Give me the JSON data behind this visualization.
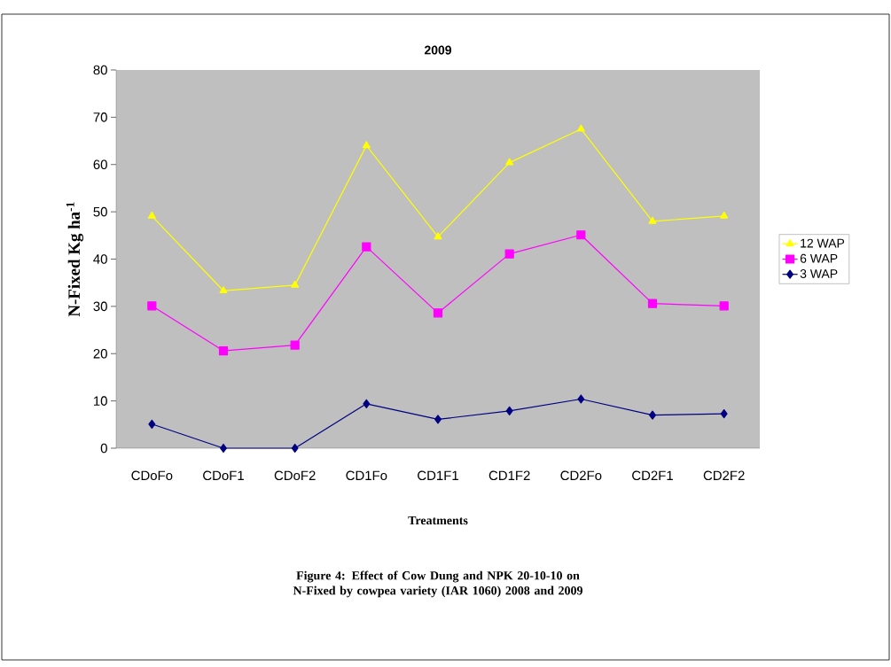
{
  "chart_data": {
    "type": "line",
    "title": "2009",
    "xlabel": "Treatments",
    "ylabel": "N-Fixed Kg ha$^{-1}$",
    "annotations": [
      "Figure 4: Effect of Cow Dung and NPK 20-10-10 on  N-Fixed by cowpea variety (IAR 1060) 2008 and 2009"
    ],
    "categories": [
      "CDoFo",
      "CDoF1",
      "CDoF2",
      "CD1Fo",
      "CD1F1",
      "CD1F2",
      "CD2Fo",
      "CD2F1",
      "CD2F2"
    ],
    "ylim": [
      0,
      80
    ],
    "yticks": [
      0,
      10,
      20,
      30,
      40,
      50,
      60,
      70,
      80
    ],
    "legend": "right",
    "grid": false,
    "series": [
      {
        "name": "12 WAP",
        "color": "#ffff00",
        "marker": "triangle",
        "values": [
          49.1,
          33.3,
          34.5,
          64.0,
          44.7,
          60.4,
          67.5,
          48.0,
          49.1
        ]
      },
      {
        "name": "6 WAP",
        "color": "#ff00ff",
        "marker": "square",
        "values": [
          30.1,
          20.6,
          21.8,
          42.6,
          28.6,
          41.1,
          45.1,
          30.6,
          30.1
        ]
      },
      {
        "name": "3 WAP",
        "color": "#000080",
        "marker": "diamond",
        "values": [
          5.1,
          0,
          0,
          9.4,
          6.1,
          7.9,
          10.4,
          7.0,
          7.3
        ]
      }
    ]
  }
}
